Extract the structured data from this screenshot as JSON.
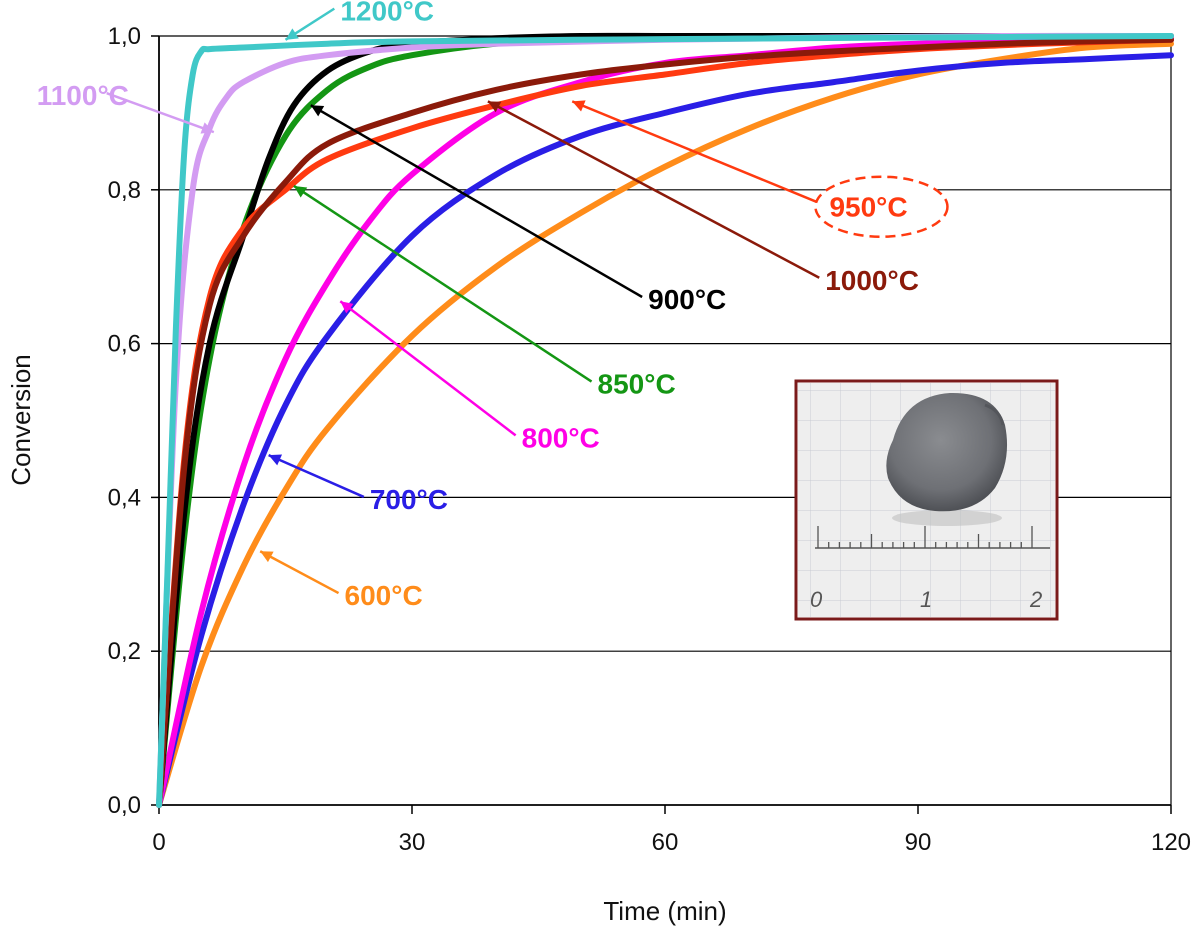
{
  "chart_data": {
    "type": "line",
    "title": "",
    "xlabel": "Time (min)",
    "ylabel": "Conversion",
    "xlim": [
      0,
      120
    ],
    "ylim": [
      0,
      1
    ],
    "grid": "horizontal",
    "x_ticks": [
      "0",
      "30",
      "60",
      "90",
      "120"
    ],
    "y_ticks": [
      "0,0",
      "0,2",
      "0,4",
      "0,6",
      "0,8",
      "1,0"
    ],
    "series": [
      {
        "name": "600°C",
        "color": "#ff8c1a",
        "x": [
          0,
          5,
          10,
          15,
          20,
          30,
          40,
          50,
          60,
          70,
          80,
          90,
          100,
          110,
          120
        ],
        "y": [
          0,
          0.18,
          0.31,
          0.41,
          0.49,
          0.61,
          0.7,
          0.77,
          0.83,
          0.88,
          0.92,
          0.95,
          0.97,
          0.985,
          0.99
        ]
      },
      {
        "name": "700°C",
        "color": "#2a1ee6",
        "x": [
          0,
          5,
          10,
          15,
          20,
          30,
          40,
          50,
          60,
          70,
          80,
          90,
          100,
          110,
          120
        ],
        "y": [
          0,
          0.22,
          0.39,
          0.52,
          0.61,
          0.74,
          0.82,
          0.87,
          0.9,
          0.925,
          0.94,
          0.955,
          0.965,
          0.97,
          0.975
        ]
      },
      {
        "name": "800°C",
        "color": "#ff00e6",
        "x": [
          0,
          5,
          10,
          15,
          20,
          25,
          30,
          40,
          50,
          60,
          70,
          80,
          90,
          100,
          110,
          120
        ],
        "y": [
          0,
          0.25,
          0.44,
          0.58,
          0.68,
          0.76,
          0.82,
          0.9,
          0.94,
          0.965,
          0.975,
          0.985,
          0.99,
          0.993,
          0.995,
          0.997
        ]
      },
      {
        "name": "850°C",
        "color": "#149614",
        "x": [
          0,
          3,
          6,
          10,
          15,
          20,
          25,
          30,
          40,
          50,
          60,
          80,
          100,
          120
        ],
        "y": [
          0,
          0.35,
          0.58,
          0.75,
          0.87,
          0.93,
          0.96,
          0.975,
          0.99,
          0.995,
          0.997,
          0.999,
          1.0,
          1.0
        ]
      },
      {
        "name": "900°C",
        "color": "#000000",
        "x": [
          0,
          3,
          6,
          10,
          13,
          16,
          20,
          25,
          30,
          40,
          50,
          60,
          80,
          100,
          120
        ],
        "y": [
          0,
          0.38,
          0.6,
          0.74,
          0.84,
          0.91,
          0.955,
          0.98,
          0.99,
          0.997,
          1.0,
          1.0,
          1.0,
          1.0,
          1.0
        ]
      },
      {
        "name": "950°C",
        "color": "#ff3a10",
        "x": [
          0,
          3,
          6,
          10,
          15,
          20,
          30,
          40,
          50,
          60,
          70,
          80,
          90,
          100,
          110,
          120
        ],
        "y": [
          0,
          0.45,
          0.66,
          0.75,
          0.8,
          0.84,
          0.88,
          0.91,
          0.935,
          0.95,
          0.965,
          0.975,
          0.983,
          0.988,
          0.992,
          0.995
        ]
      },
      {
        "name": "1000°C",
        "color": "#8b1a0a",
        "x": [
          0,
          3,
          6,
          10,
          15,
          20,
          30,
          40,
          50,
          60,
          70,
          80,
          90,
          100,
          110,
          120
        ],
        "y": [
          0,
          0.44,
          0.65,
          0.74,
          0.81,
          0.86,
          0.9,
          0.93,
          0.95,
          0.963,
          0.973,
          0.98,
          0.985,
          0.99,
          0.993,
          0.995
        ]
      },
      {
        "name": "1100°C",
        "color": "#d39cf2",
        "x": [
          0,
          2,
          4,
          6,
          8,
          10,
          15,
          20,
          30,
          40,
          60,
          80,
          100,
          120
        ],
        "y": [
          0,
          0.55,
          0.8,
          0.88,
          0.92,
          0.94,
          0.965,
          0.975,
          0.985,
          0.99,
          0.995,
          0.998,
          1.0,
          1.0
        ]
      },
      {
        "name": "1200°C",
        "color": "#40c8c8",
        "x": [
          0,
          1,
          2,
          3,
          4,
          5,
          6,
          10,
          20,
          30,
          60,
          90,
          120
        ],
        "y": [
          0,
          0.3,
          0.62,
          0.85,
          0.95,
          0.98,
          0.983,
          0.985,
          0.99,
          0.993,
          0.996,
          0.998,
          1.0
        ]
      }
    ],
    "labels": [
      {
        "series": "1200°C",
        "text": "1200°C",
        "pos": [
          21.5,
          1.02
        ],
        "tip": [
          15,
          0.995
        ],
        "highlighted": false
      },
      {
        "series": "1100°C",
        "text": "1100°C",
        "pos": [
          -14.5,
          0.91
        ],
        "tip": [
          6.5,
          0.875
        ],
        "highlighted": false
      },
      {
        "series": "900°C",
        "text": "900°C",
        "pos": [
          58,
          0.645
        ],
        "tip": [
          18,
          0.91
        ],
        "highlighted": false
      },
      {
        "series": "1000°C",
        "text": "1000°C",
        "pos": [
          79,
          0.67
        ],
        "tip": [
          39,
          0.915
        ],
        "highlighted": false
      },
      {
        "series": "950°C",
        "text": "950°C",
        "pos": [
          79.5,
          0.765
        ],
        "tip": [
          49,
          0.915
        ],
        "highlighted": true
      },
      {
        "series": "850°C",
        "text": "850°C",
        "pos": [
          52,
          0.535
        ],
        "tip": [
          16,
          0.805
        ],
        "highlighted": false
      },
      {
        "series": "800°C",
        "text": "800°C",
        "pos": [
          43,
          0.465
        ],
        "tip": [
          21.5,
          0.655
        ],
        "highlighted": false
      },
      {
        "series": "700°C",
        "text": "700°C",
        "pos": [
          25,
          0.385
        ],
        "tip": [
          13,
          0.455
        ],
        "highlighted": false
      },
      {
        "series": "600°C",
        "text": "600°C",
        "pos": [
          22,
          0.26
        ],
        "tip": [
          12,
          0.33
        ],
        "highlighted": false
      }
    ],
    "inset": {
      "description_name": "pellet-photo",
      "ruler_labels": [
        "0",
        "1",
        "2"
      ]
    }
  }
}
